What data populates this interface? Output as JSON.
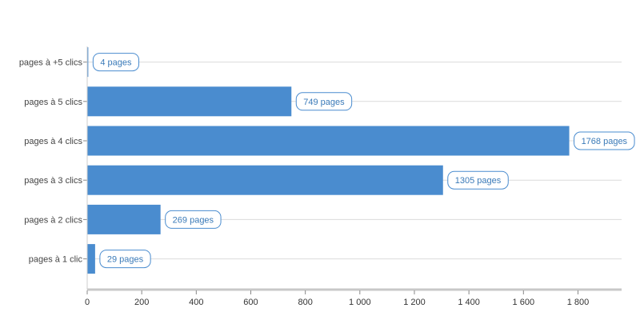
{
  "chart_data": {
    "type": "bar",
    "orientation": "horizontal",
    "categories": [
      "pages à +5 clics",
      "pages à 5 clics",
      "pages à 4 clics",
      "pages à 3 clics",
      "pages à 2 clics",
      "pages à 1 clic"
    ],
    "values": [
      4,
      749,
      1768,
      1305,
      269,
      29
    ],
    "data_labels": [
      "4 pages",
      "749 pages",
      "1768 pages",
      "1305 pages",
      "269 pages",
      "29 pages"
    ],
    "x_ticks": [
      0,
      200,
      400,
      600,
      800,
      1000,
      1200,
      1400,
      1600,
      1800
    ],
    "x_tick_labels": [
      "0",
      "200",
      "400",
      "600",
      "800",
      "1 000",
      "1 200",
      "1 400",
      "1 600",
      "1 800"
    ],
    "xlim": [
      0,
      1960
    ],
    "title": "",
    "xlabel": "",
    "ylabel": "",
    "grid": true,
    "legend": "none",
    "colors": {
      "bar": "#4a8ccf",
      "label_border": "#4a8ccf",
      "label_text": "#3a7ab8",
      "grid": "#dcdcdc",
      "axis": "#c8c8c8"
    }
  }
}
